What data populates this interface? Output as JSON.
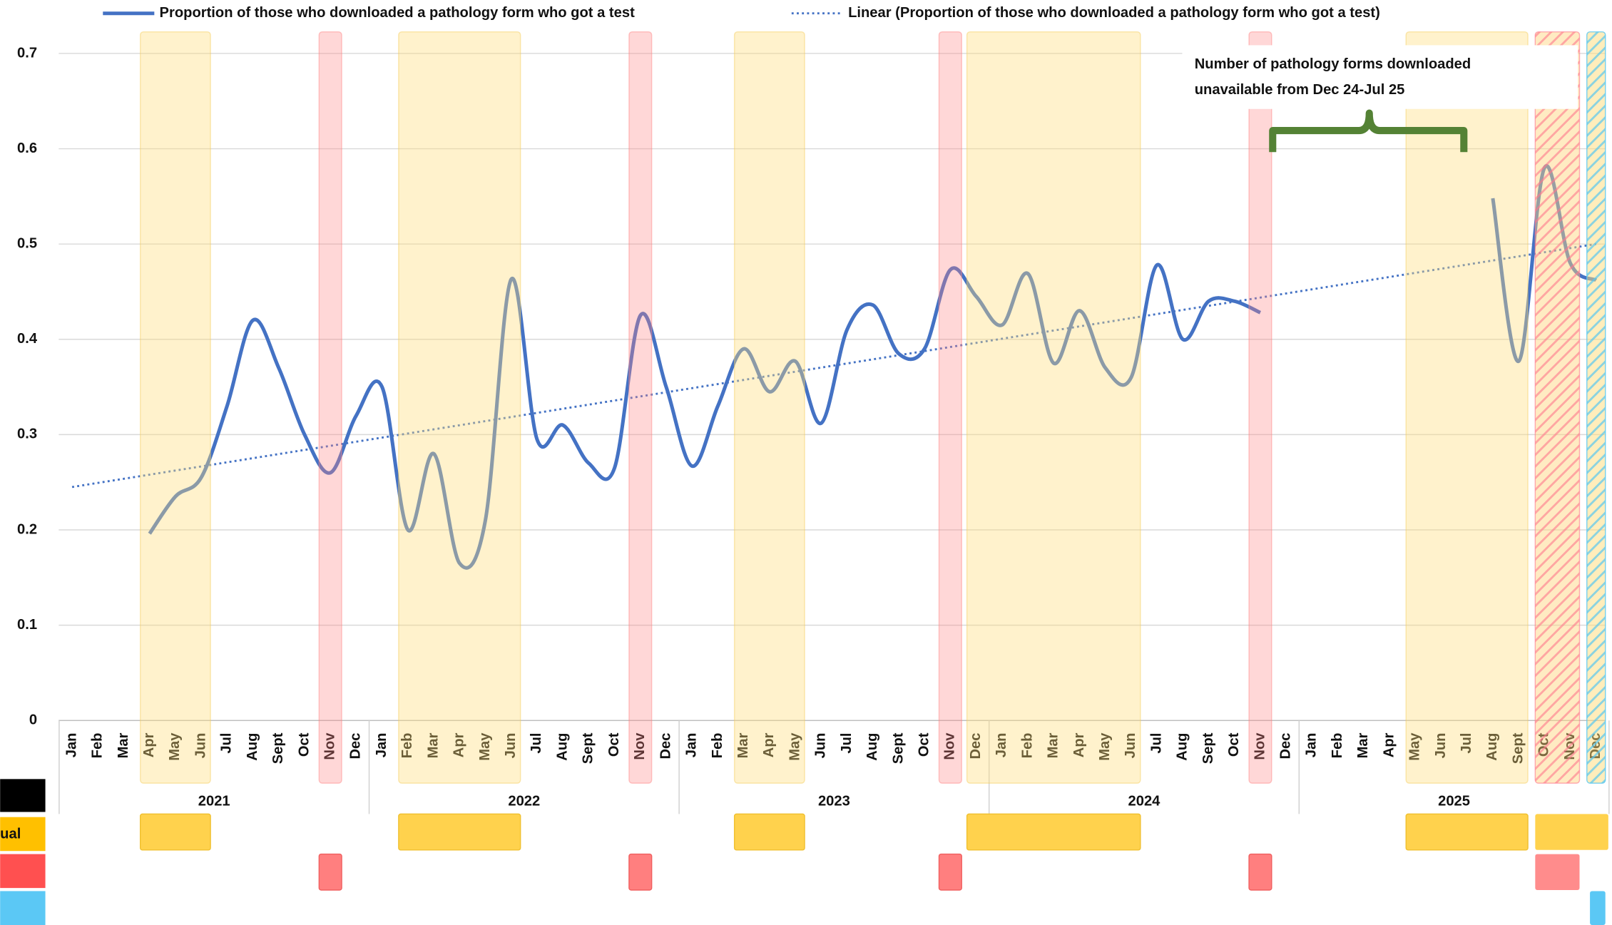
{
  "chart_data": {
    "type": "line",
    "categories": [
      "Jan",
      "Feb",
      "Mar",
      "Apr",
      "May",
      "Jun",
      "Jul",
      "Aug",
      "Sept",
      "Oct",
      "Nov",
      "Dec",
      "Jan",
      "Feb",
      "Mar",
      "Apr",
      "May",
      "Jun",
      "Jul",
      "Aug",
      "Sept",
      "Oct",
      "Nov",
      "Dec",
      "Jan",
      "Feb",
      "Mar",
      "Apr",
      "May",
      "Jun",
      "Jul",
      "Aug",
      "Sept",
      "Oct",
      "Nov",
      "Dec",
      "Jan",
      "Feb",
      "Mar",
      "Apr",
      "May",
      "Jun",
      "Jul",
      "Aug",
      "Sept",
      "Oct",
      "Nov",
      "Dec",
      "Jan",
      "Feb",
      "Mar",
      "Apr",
      "May",
      "Jun",
      "Jul",
      "Aug",
      "Sept",
      "Oct",
      "Nov",
      "Dec"
    ],
    "groups": [
      "2021",
      "2022",
      "2023",
      "2024",
      "2025"
    ],
    "series": [
      {
        "name": "Proportion of those who downloaded a pathology form who got a test",
        "color": "#4472c4",
        "values": [
          null,
          null,
          null,
          0.196,
          0.235,
          0.255,
          0.33,
          0.42,
          0.37,
          0.3,
          0.26,
          0.32,
          0.35,
          0.2,
          0.28,
          0.165,
          0.21,
          0.463,
          0.295,
          0.31,
          0.27,
          0.265,
          0.425,
          0.35,
          0.267,
          0.33,
          0.39,
          0.345,
          0.377,
          0.312,
          0.41,
          0.436,
          0.385,
          0.39,
          0.473,
          0.445,
          0.415,
          0.469,
          0.375,
          0.43,
          0.37,
          0.36,
          0.478,
          0.4,
          0.44,
          0.44,
          0.428,
          null,
          null,
          null,
          null,
          null,
          null,
          null,
          null,
          0.548,
          0.377,
          0.58,
          0.48,
          0.462
        ]
      }
    ],
    "trendline": {
      "name": "Linear (Proportion of those who downloaded a pathology form who got a test)",
      "color": "#4472c4",
      "start": 0.245,
      "end": 0.5
    },
    "annotation": "Number of pathology forms downloaded unavailable from Dec 24-Jul 25",
    "legend_side_label": "ual",
    "ylim": [
      0,
      0.7
    ],
    "yticks": [
      0,
      0.1,
      0.2,
      0.3,
      0.4,
      0.5,
      0.6,
      0.7
    ],
    "grid": true
  }
}
